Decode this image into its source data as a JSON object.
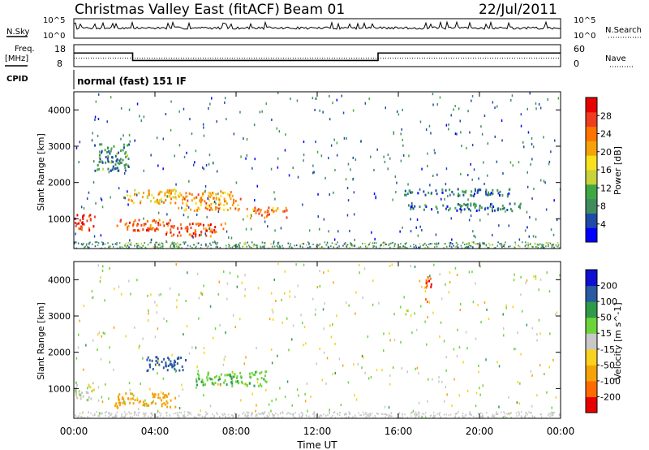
{
  "header": {
    "station": "Christmas Valley East (fitACF)",
    "beam": "Beam 01",
    "date": "22/Jul/2011"
  },
  "top_panels": {
    "nsky_label": "N.Sky",
    "nsky_ticks": [
      "10^5",
      "10^0"
    ],
    "nsearch_label": "N.Search",
    "nsearch_ticks": [
      "10^5",
      "10^0"
    ],
    "freq_label_1": "Freq.",
    "freq_label_2": "[MHz]",
    "freq_ticks": [
      "18",
      "8"
    ],
    "nave_label": "Nave",
    "nave_ticks": [
      "60",
      "0"
    ],
    "cpid_label": "CPID",
    "cpid_text": "normal (fast) 151 IF"
  },
  "power_panel": {
    "ylabel": "Slant Range [km]",
    "yticks": [
      "4000",
      "3000",
      "2000",
      "1000"
    ],
    "colorbar_label": "Power [dB]",
    "colorbar_ticks": [
      "28",
      "24",
      "20",
      "16",
      "12",
      "8",
      "4"
    ],
    "colors": [
      "#0000ff",
      "#1f4aa8",
      "#3f8d5f",
      "#3fa844",
      "#c8d23a",
      "#f7e11e",
      "#f5a30a",
      "#ff7300",
      "#ef3d1f",
      "#e60000"
    ]
  },
  "velocity_panel": {
    "ylabel": "Slant Range [km]",
    "yticks": [
      "4000",
      "3000",
      "2000",
      "1000"
    ],
    "colorbar_label": "Velocity [m s^-1]",
    "colorbar_ticks": [
      "200",
      "100",
      "50",
      "15",
      "-15",
      "-50",
      "-100",
      "-200"
    ],
    "colors": [
      "#1010d0",
      "#2a5aa0",
      "#2e9a4a",
      "#6cd43a",
      "#c8c8c8",
      "#f7d21e",
      "#f5a30a",
      "#ff6a00",
      "#e60000"
    ]
  },
  "xaxis": {
    "label": "Time UT",
    "ticks": [
      "00:00",
      "04:00",
      "08:00",
      "12:00",
      "16:00",
      "20:00",
      "00:00"
    ]
  },
  "chart_data": {
    "type": "heatmap",
    "title": "Christmas Valley East (fitACF) Beam 01 22/Jul/2011",
    "xlabel": "Time UT",
    "ylabel": "Slant Range [km]",
    "xlim_hours": [
      0,
      24
    ],
    "ylim_km": [
      180,
      4500
    ],
    "frequency_mhz": {
      "ylim": [
        8,
        18
      ],
      "segments": [
        {
          "t0": 0.0,
          "t1": 2.9,
          "value": 14.2
        },
        {
          "t0": 2.9,
          "t1": 15.0,
          "value": 10.8
        },
        {
          "t0": 15.0,
          "t1": 24.0,
          "value": 14.2
        }
      ]
    },
    "nave": {
      "ylim": [
        0,
        60
      ],
      "approx_value": 23
    },
    "power_colorbar_db": [
      4,
      8,
      12,
      16,
      20,
      24,
      28
    ],
    "velocity_colorbar_ms": [
      200,
      100,
      50,
      15,
      -15,
      -50,
      -100,
      -200
    ],
    "power_echo_regions": [
      {
        "t0": 0.0,
        "t1": 1.0,
        "r0": 700,
        "r1": 1150,
        "db": 30
      },
      {
        "t0": 1.0,
        "t1": 2.7,
        "r0": 2350,
        "r1": 3100,
        "db": 10
      },
      {
        "t0": 2.0,
        "t1": 5.0,
        "r0": 700,
        "r1": 1000,
        "db": 26
      },
      {
        "t0": 2.5,
        "t1": 5.0,
        "r0": 1450,
        "r1": 1850,
        "db": 20
      },
      {
        "t0": 5.0,
        "t1": 8.2,
        "r0": 1250,
        "r1": 1800,
        "db": 22
      },
      {
        "t0": 8.5,
        "t1": 10.5,
        "r0": 1050,
        "r1": 1350,
        "db": 24
      },
      {
        "t0": 4.5,
        "t1": 7.5,
        "r0": 550,
        "r1": 900,
        "db": 26
      },
      {
        "t0": 16.2,
        "t1": 21.5,
        "r0": 1650,
        "r1": 1850,
        "db": 9
      },
      {
        "t0": 16.2,
        "t1": 22.0,
        "r0": 1250,
        "r1": 1450,
        "db": 9
      }
    ],
    "velocity_echo_regions": [
      {
        "t0": 0.0,
        "t1": 1.0,
        "r0": 700,
        "r1": 1200,
        "v": 0
      },
      {
        "t0": 2.0,
        "t1": 5.0,
        "r0": 500,
        "r1": 900,
        "v": -80
      },
      {
        "t0": 3.5,
        "t1": 5.5,
        "r0": 1500,
        "r1": 1900,
        "v": 120
      },
      {
        "t0": 6.0,
        "t1": 9.5,
        "r0": 1100,
        "r1": 1500,
        "v": 40
      },
      {
        "t0": 17.3,
        "t1": 17.6,
        "r0": 3400,
        "r1": 4100,
        "v": -200
      }
    ]
  }
}
